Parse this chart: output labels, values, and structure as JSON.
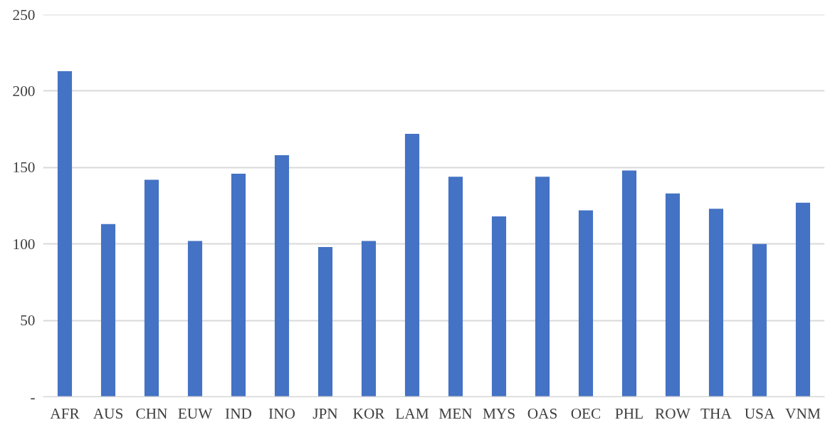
{
  "chart_data": {
    "type": "bar",
    "categories": [
      "AFR",
      "AUS",
      "CHN",
      "EUW",
      "IND",
      "INO",
      "JPN",
      "KOR",
      "LAM",
      "MEN",
      "MYS",
      "OAS",
      "OEC",
      "PHL",
      "ROW",
      "THA",
      "USA",
      "VNM"
    ],
    "values": [
      213,
      113,
      142,
      102,
      146,
      158,
      98,
      102,
      172,
      144,
      118,
      144,
      122,
      148,
      133,
      123,
      100,
      127
    ],
    "color": "#4472c4",
    "ylim": [
      0,
      250
    ],
    "yticks": [
      {
        "value": 0,
        "label": "-"
      },
      50,
      100,
      150,
      200,
      250
    ],
    "grid": "y"
  }
}
